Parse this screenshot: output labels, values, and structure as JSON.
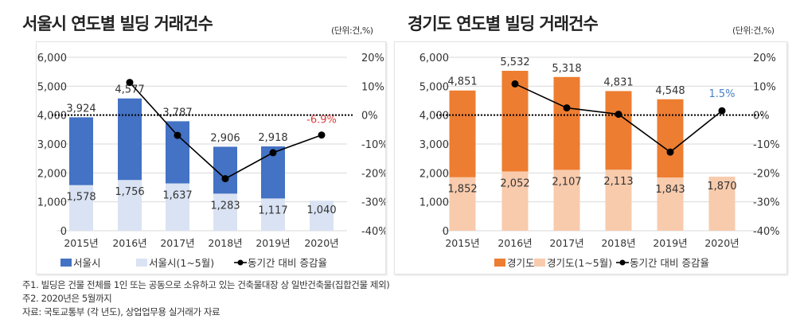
{
  "unit_label": "(단위:건,%)",
  "chart_data": [
    {
      "type": "bar",
      "title": "서울시 연도별 빌딩 거래건수",
      "categories": [
        "2015년",
        "2016년",
        "2017년",
        "2018년",
        "2019년",
        "2020년"
      ],
      "series": [
        {
          "name": "서울시",
          "type": "bar",
          "color": "#4472C4",
          "values": [
            3924,
            4577,
            3787,
            2906,
            2918,
            null
          ]
        },
        {
          "name": "서울시(1~5월)",
          "type": "bar",
          "color": "#DAE3F3",
          "values": [
            1578,
            1756,
            1637,
            1283,
            1117,
            1040
          ]
        },
        {
          "name": "동기간 대비 증감율",
          "type": "line",
          "axis": "right",
          "color": "#000000",
          "values": [
            null,
            11.3,
            -7.0,
            -22.0,
            -13.0,
            -6.9
          ]
        }
      ],
      "highlight_label": {
        "text": "-6.9%",
        "color": "#E03C3C"
      },
      "ylim": [
        0,
        6000
      ],
      "yticks": [
        "0",
        "1,000",
        "2,000",
        "3,000",
        "4,000",
        "5,000",
        "6,000"
      ],
      "y2lim": [
        -40,
        20
      ],
      "y2ticks": [
        "-40%",
        "-30%",
        "-20%",
        "-10%",
        "0%",
        "10%",
        "20%"
      ],
      "reference_line": "0% dotted",
      "grid": true,
      "legend": "bottom"
    },
    {
      "type": "bar",
      "title": "경기도 연도별 빌딩 거래건수",
      "categories": [
        "2015년",
        "2016년",
        "2017년",
        "2018년",
        "2019년",
        "2020년"
      ],
      "series": [
        {
          "name": "경기도",
          "type": "bar",
          "color": "#ED7D31",
          "values": [
            4851,
            5532,
            5318,
            4831,
            4548,
            null
          ]
        },
        {
          "name": "경기도(1~5월)",
          "type": "bar",
          "color": "#F8CBAD",
          "values": [
            1852,
            2052,
            2107,
            2113,
            1843,
            1870
          ]
        },
        {
          "name": "동기간 대비 증감율",
          "type": "line",
          "axis": "right",
          "color": "#000000",
          "values": [
            null,
            10.8,
            2.5,
            0.3,
            -12.8,
            1.5
          ]
        }
      ],
      "highlight_label": {
        "text": "1.5%",
        "color": "#4A7EC8"
      },
      "ylim": [
        0,
        6000
      ],
      "yticks": [
        "0",
        "1,000",
        "2,000",
        "3,000",
        "4,000",
        "5,000",
        "6,000"
      ],
      "y2lim": [
        -40,
        20
      ],
      "y2ticks": [
        "-40%",
        "-30%",
        "-20%",
        "-10%",
        "0%",
        "10%",
        "20%"
      ],
      "reference_line": "0% dotted",
      "grid": true,
      "legend": "bottom"
    }
  ],
  "footnotes": [
    "주1. 빌딩은 건물 전체를 1인 또는 공동으로 소유하고 있는 건축물대장 상 일반건축물(집합건물 제외)",
    "주2. 2020년은 5월까지",
    "자료: 국토교통부 (각 년도), 상업업무용 실거래가 자료"
  ]
}
